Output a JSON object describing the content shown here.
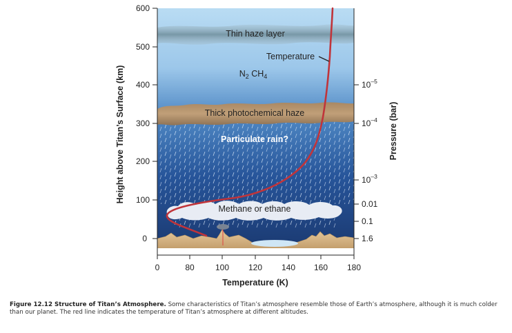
{
  "figure": {
    "left_axis": {
      "title": "Height above Titan’s Surface (km)",
      "ticks": [
        "600",
        "500",
        "400",
        "300",
        "200",
        "100",
        "0"
      ]
    },
    "bottom_axis": {
      "title": "Temperature (K)",
      "ticks": [
        "0",
        "80",
        "100",
        "120",
        "140",
        "160",
        "180"
      ]
    },
    "right_axis": {
      "title": "Pressure (bar)",
      "ticks": [
        {
          "base": "10",
          "exp": "–5"
        },
        {
          "base": "10",
          "exp": "–4"
        },
        {
          "base": "10",
          "exp": "–3"
        },
        {
          "base": "0.01",
          "exp": ""
        },
        {
          "base": "0.1",
          "exp": ""
        },
        {
          "base": "1.6",
          "exp": ""
        }
      ]
    },
    "labels": {
      "thin_haze": "Thin haze layer",
      "temperature": "Temperature",
      "n2": "N",
      "n2_sub": "2",
      "ch4": " CH",
      "ch4_sub": "4",
      "thick_haze": "Thick photochemical haze",
      "rain": "Particulate rain?",
      "methane": "Methane or ethane"
    },
    "colors": {
      "temperature_line": "#c0343a",
      "sky_top": "#a9d1ee",
      "sky_bottom": "#1d3f78",
      "haze": "#b28f6a",
      "ground": "#d9b88a"
    }
  },
  "caption": {
    "label": "Figure 12.12 Structure of Titan’s Atmosphere.",
    "text": " Some characteristics of Titan’s atmosphere resemble those of Earth’s atmosphere, although it is much colder than our planet. The red line indicates the temperature of Titan’s atmosphere at different altitudes."
  }
}
